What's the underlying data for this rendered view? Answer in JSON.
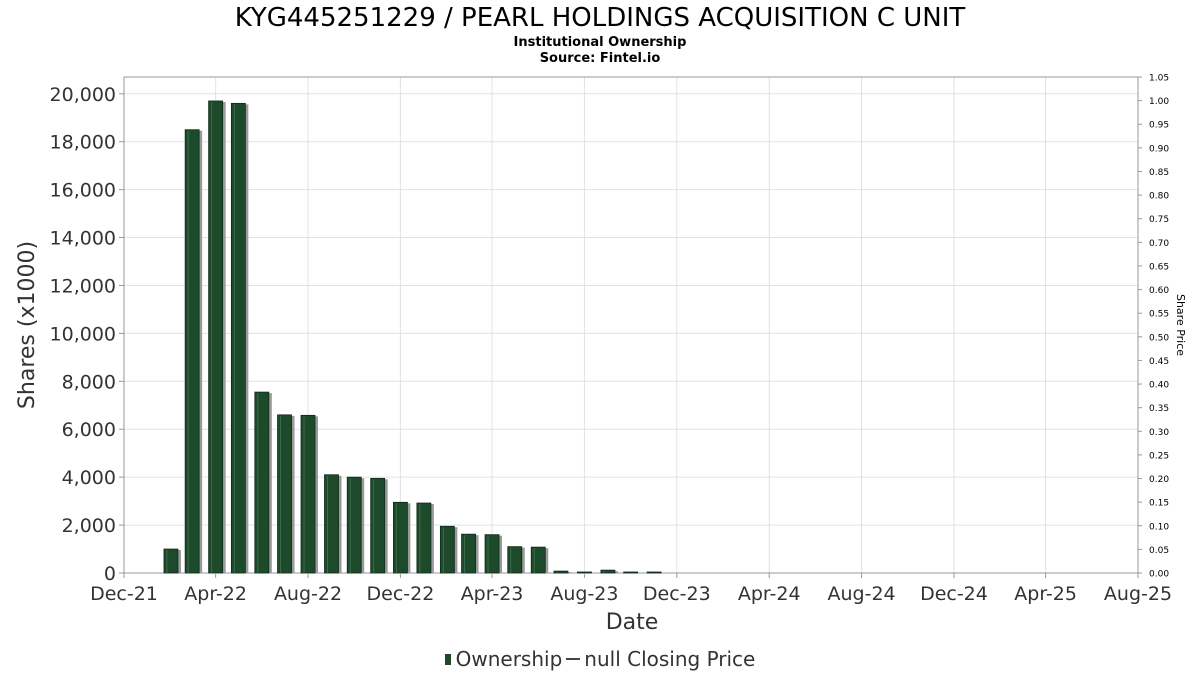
{
  "chart_data": {
    "type": "bar",
    "title": "KYG445251229 / PEARL HOLDINGS ACQUISITION C UNIT",
    "subtitle_lines": [
      "Institutional Ownership",
      "Source: Fintel.io"
    ],
    "xlabel": "Date",
    "ylabel": "Shares (x1000)",
    "y2label": "Share Price",
    "ylim": [
      0,
      20700
    ],
    "y2lim": [
      0,
      1.05
    ],
    "x_range": [
      "2021-12-01",
      "2025-08-01"
    ],
    "x_ticks": [
      {
        "date": "2021-12-01",
        "label": "Dec-21"
      },
      {
        "date": "2022-04-01",
        "label": "Apr-22"
      },
      {
        "date": "2022-08-01",
        "label": "Aug-22"
      },
      {
        "date": "2022-12-01",
        "label": "Dec-22"
      },
      {
        "date": "2023-04-01",
        "label": "Apr-23"
      },
      {
        "date": "2023-08-01",
        "label": "Aug-23"
      },
      {
        "date": "2023-12-01",
        "label": "Dec-23"
      },
      {
        "date": "2024-04-01",
        "label": "Apr-24"
      },
      {
        "date": "2024-08-01",
        "label": "Aug-24"
      },
      {
        "date": "2024-12-01",
        "label": "Dec-24"
      },
      {
        "date": "2025-04-01",
        "label": "Apr-25"
      },
      {
        "date": "2025-08-01",
        "label": "Aug-25"
      }
    ],
    "y_ticks": [
      {
        "value": 0,
        "label": "0"
      },
      {
        "value": 2000,
        "label": "2,000"
      },
      {
        "value": 4000,
        "label": "4,000"
      },
      {
        "value": 6000,
        "label": "6,000"
      },
      {
        "value": 8000,
        "label": "8,000"
      },
      {
        "value": 10000,
        "label": "10,000"
      },
      {
        "value": 12000,
        "label": "12,000"
      },
      {
        "value": 14000,
        "label": "14,000"
      },
      {
        "value": 16000,
        "label": "16,000"
      },
      {
        "value": 18000,
        "label": "18,000"
      },
      {
        "value": 20000,
        "label": "20,000"
      }
    ],
    "y2_ticks": [
      {
        "value": 0.0,
        "label": "0.00"
      },
      {
        "value": 0.05,
        "label": "0.05"
      },
      {
        "value": 0.1,
        "label": "0.10"
      },
      {
        "value": 0.15,
        "label": "0.15"
      },
      {
        "value": 0.2,
        "label": "0.20"
      },
      {
        "value": 0.25,
        "label": "0.25"
      },
      {
        "value": 0.3,
        "label": "0.30"
      },
      {
        "value": 0.35,
        "label": "0.35"
      },
      {
        "value": 0.4,
        "label": "0.40"
      },
      {
        "value": 0.45,
        "label": "0.45"
      },
      {
        "value": 0.5,
        "label": "0.50"
      },
      {
        "value": 0.55,
        "label": "0.55"
      },
      {
        "value": 0.6,
        "label": "0.60"
      },
      {
        "value": 0.65,
        "label": "0.65"
      },
      {
        "value": 0.7,
        "label": "0.70"
      },
      {
        "value": 0.75,
        "label": "0.75"
      },
      {
        "value": 0.8,
        "label": "0.80"
      },
      {
        "value": 0.85,
        "label": "0.85"
      },
      {
        "value": 0.9,
        "label": "0.90"
      },
      {
        "value": 0.95,
        "label": "0.95"
      },
      {
        "value": 1.0,
        "label": "1.00"
      },
      {
        "value": 1.05,
        "label": "1.05"
      }
    ],
    "grid": true,
    "legend_position": "bottom",
    "series": [
      {
        "name": "Ownership",
        "color": "#1e4a2c",
        "points": [
          {
            "date": "2022-02-01",
            "value": 1000
          },
          {
            "date": "2022-03-01",
            "value": 18500
          },
          {
            "date": "2022-04-01",
            "value": 19700
          },
          {
            "date": "2022-05-01",
            "value": 19600
          },
          {
            "date": "2022-06-01",
            "value": 7550
          },
          {
            "date": "2022-07-01",
            "value": 6600
          },
          {
            "date": "2022-08-01",
            "value": 6580
          },
          {
            "date": "2022-09-01",
            "value": 4100
          },
          {
            "date": "2022-10-01",
            "value": 4000
          },
          {
            "date": "2022-11-01",
            "value": 3950
          },
          {
            "date": "2022-12-01",
            "value": 2950
          },
          {
            "date": "2023-01-01",
            "value": 2920
          },
          {
            "date": "2023-02-01",
            "value": 1950
          },
          {
            "date": "2023-03-01",
            "value": 1620
          },
          {
            "date": "2023-04-01",
            "value": 1600
          },
          {
            "date": "2023-05-01",
            "value": 1100
          },
          {
            "date": "2023-06-01",
            "value": 1080
          },
          {
            "date": "2023-07-01",
            "value": 80
          },
          {
            "date": "2023-08-01",
            "value": 30
          },
          {
            "date": "2023-09-01",
            "value": 120
          },
          {
            "date": "2023-10-01",
            "value": 15
          },
          {
            "date": "2023-11-01",
            "value": 10
          }
        ]
      },
      {
        "name": "null Closing Price",
        "color": "#444444",
        "points": []
      }
    ]
  }
}
